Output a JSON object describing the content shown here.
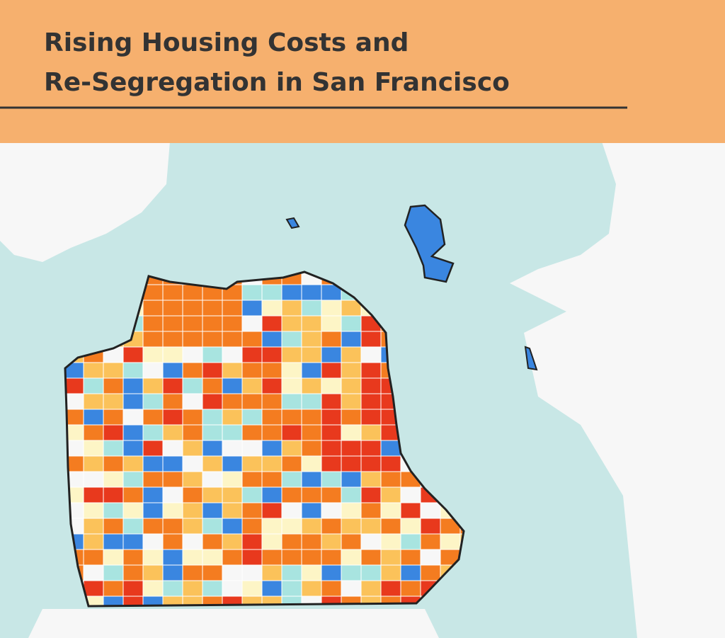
{
  "header": {
    "title_lines": [
      "Rising Housing Costs and",
      "Re-Segregation in San Francisco"
    ]
  }
}
